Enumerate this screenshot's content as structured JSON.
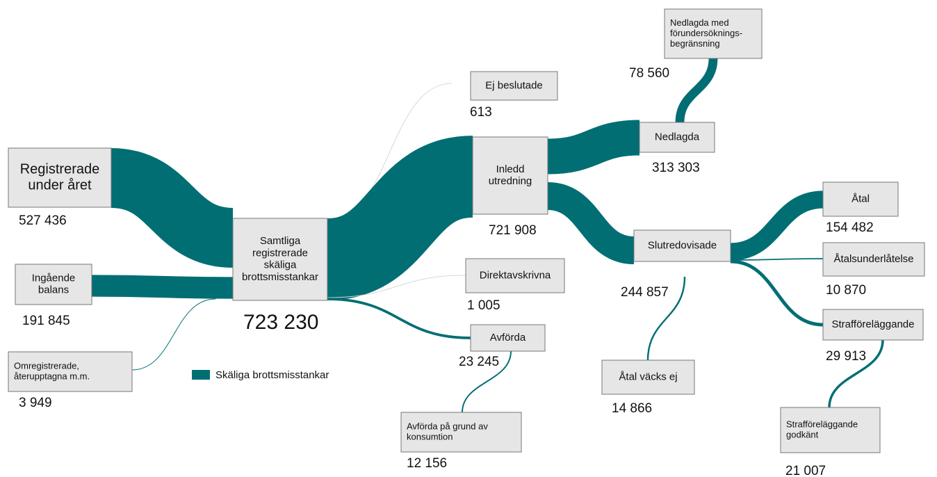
{
  "legend": "Skäliga brottsmisstankar",
  "nodes": [
    {
      "label": [
        "Registrerade",
        "under året"
      ],
      "value": 527436,
      "value_label": "527 436"
    },
    {
      "label": [
        "Ingående",
        "balans"
      ],
      "value": 191845,
      "value_label": "191 845"
    },
    {
      "label": [
        "Omregistrerade,",
        "återupptagna m.m."
      ],
      "value": 3949,
      "value_label": "3 949"
    },
    {
      "label": [
        "Samtliga",
        "registrerade",
        "skäliga",
        "brottsmisstankar"
      ],
      "value": 723230,
      "value_label": "723 230"
    },
    {
      "label": [
        "Ej beslutade"
      ],
      "value": 613,
      "value_label": "613"
    },
    {
      "label": [
        "Inledd",
        "utredning"
      ],
      "value": 721908,
      "value_label": "721 908"
    },
    {
      "label": [
        "Direktavskrivna"
      ],
      "value": 1005,
      "value_label": "1 005"
    },
    {
      "label": [
        "Avförda"
      ],
      "value": 23245,
      "value_label": "23 245"
    },
    {
      "label": [
        "Avförda på grund av",
        "konsumtion"
      ],
      "value": 12156,
      "value_label": "12 156"
    },
    {
      "label": [
        "Nedlagda"
      ],
      "value": 313303,
      "value_label": "313 303"
    },
    {
      "label": [
        "Nedlagda med",
        "förundersöknings-",
        "begränsning"
      ],
      "value": 78560,
      "value_label": "78 560"
    },
    {
      "label": [
        "Slutredovisade"
      ],
      "value": 244857,
      "value_label": "244 857"
    },
    {
      "label": [
        "Åtal väcks ej"
      ],
      "value": 14866,
      "value_label": "14 866"
    },
    {
      "label": [
        "Åtal"
      ],
      "value": 154482,
      "value_label": "154 482"
    },
    {
      "label": [
        "Åtalsunderlåtelse"
      ],
      "value": 10870,
      "value_label": "10 870"
    },
    {
      "label": [
        "Strafföreläggande"
      ],
      "value": 29913,
      "value_label": "29 913"
    },
    {
      "label": [
        "Strafföreläggande",
        "godkänt"
      ],
      "value": 21007,
      "value_label": "21 007"
    }
  ]
}
